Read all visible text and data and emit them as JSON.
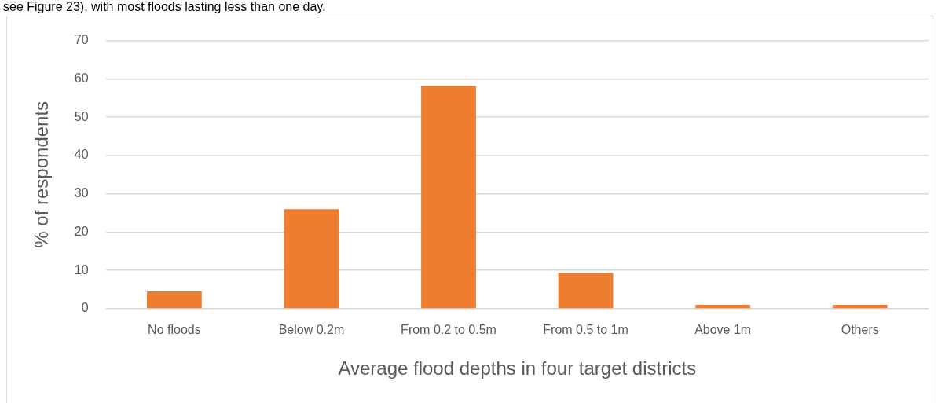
{
  "chart_data": {
    "type": "bar",
    "annotations": [
      "see Figure 23), with most floods lasting less than one day."
    ],
    "xlabel": "Average flood depths in four target districts",
    "ylabel": "% of respondents",
    "categories": [
      "No floods",
      "Below 0.2m",
      "From 0.2 to 0.5m",
      "From 0.5 to 1m",
      "Above 1m",
      "Others"
    ],
    "values": [
      4.5,
      26,
      58.2,
      9.4,
      1,
      1
    ],
    "color": "#ed7d31",
    "ylim": [
      0,
      70
    ],
    "yticks": [
      0,
      10,
      20,
      30,
      40,
      50,
      60,
      70
    ],
    "grid": "y"
  }
}
